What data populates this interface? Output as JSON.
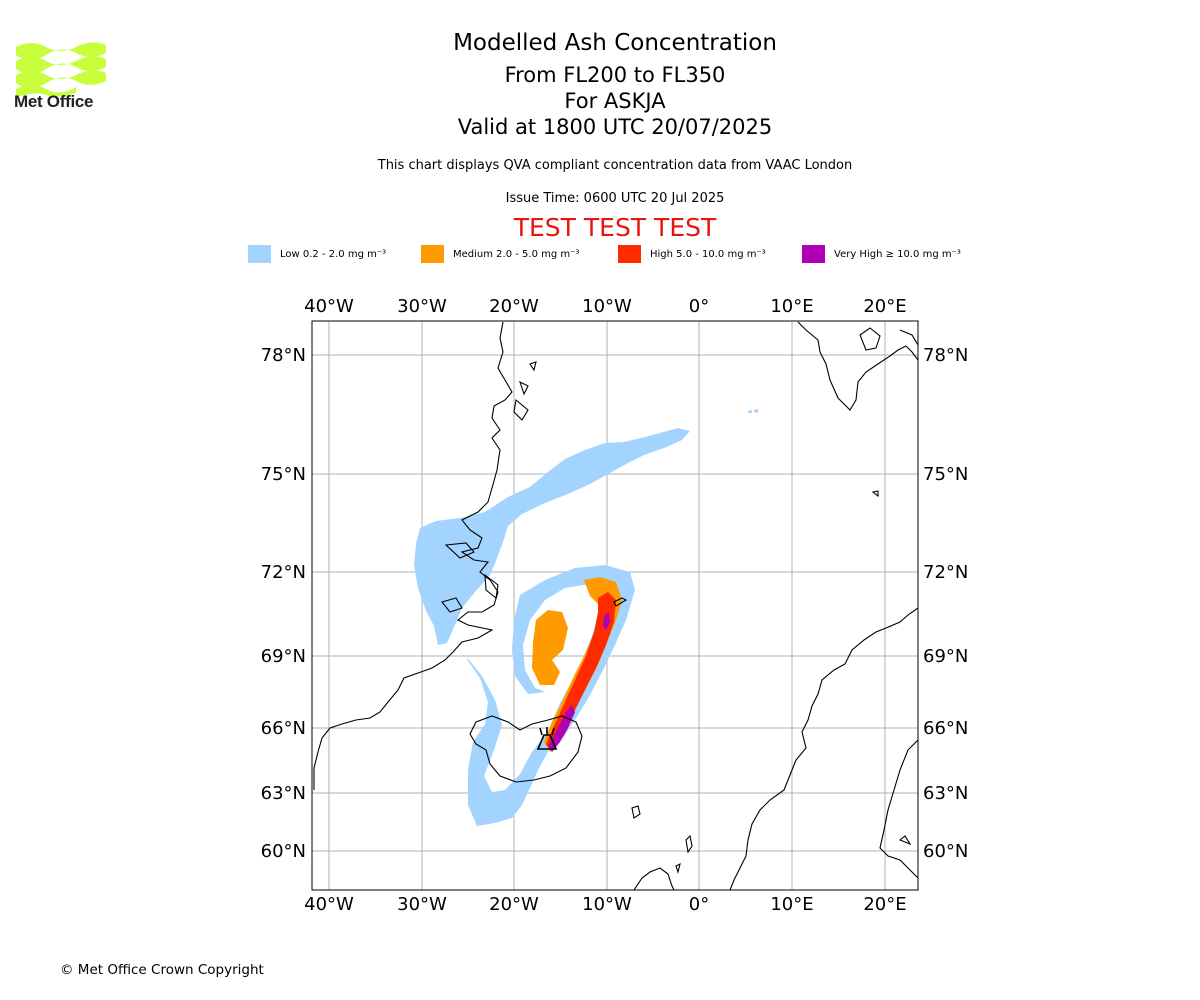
{
  "header": {
    "title": "Modelled Ash Concentration",
    "flight_levels": "From FL200 to FL350",
    "volcano_line": "For ASKJA",
    "valid_line": "Valid at 1800 UTC 20/07/2025",
    "note": "This chart displays QVA compliant concentration data from VAAC London",
    "issue_time": "Issue Time: 0600 UTC 20 Jul 2025",
    "test_banner": "TEST TEST TEST"
  },
  "logo": {
    "text": "Met Office",
    "color": "#c8ff3c"
  },
  "legend": [
    {
      "label": "Low 0.2 - 2.0 mg m⁻³",
      "color": "#a3d3ff"
    },
    {
      "label": "Medium 2.0 - 5.0 mg m⁻³",
      "color": "#ff9a00"
    },
    {
      "label": "High 5.0 - 10.0 mg m⁻³",
      "color": "#ff2a00"
    },
    {
      "label": "Very High ≥ 10.0 mg m⁻³",
      "color": "#b000b3"
    }
  ],
  "map": {
    "lon_ticks": [
      "40°W",
      "30°W",
      "20°W",
      "10°W",
      "0°",
      "10°E",
      "20°E"
    ],
    "lat_ticks": [
      "78°N",
      "75°N",
      "72°N",
      "69°N",
      "66°N",
      "63°N",
      "60°N"
    ],
    "grid_color": "#b0b0b0"
  },
  "footer": {
    "copyright": "© Met Office Crown Copyright"
  }
}
